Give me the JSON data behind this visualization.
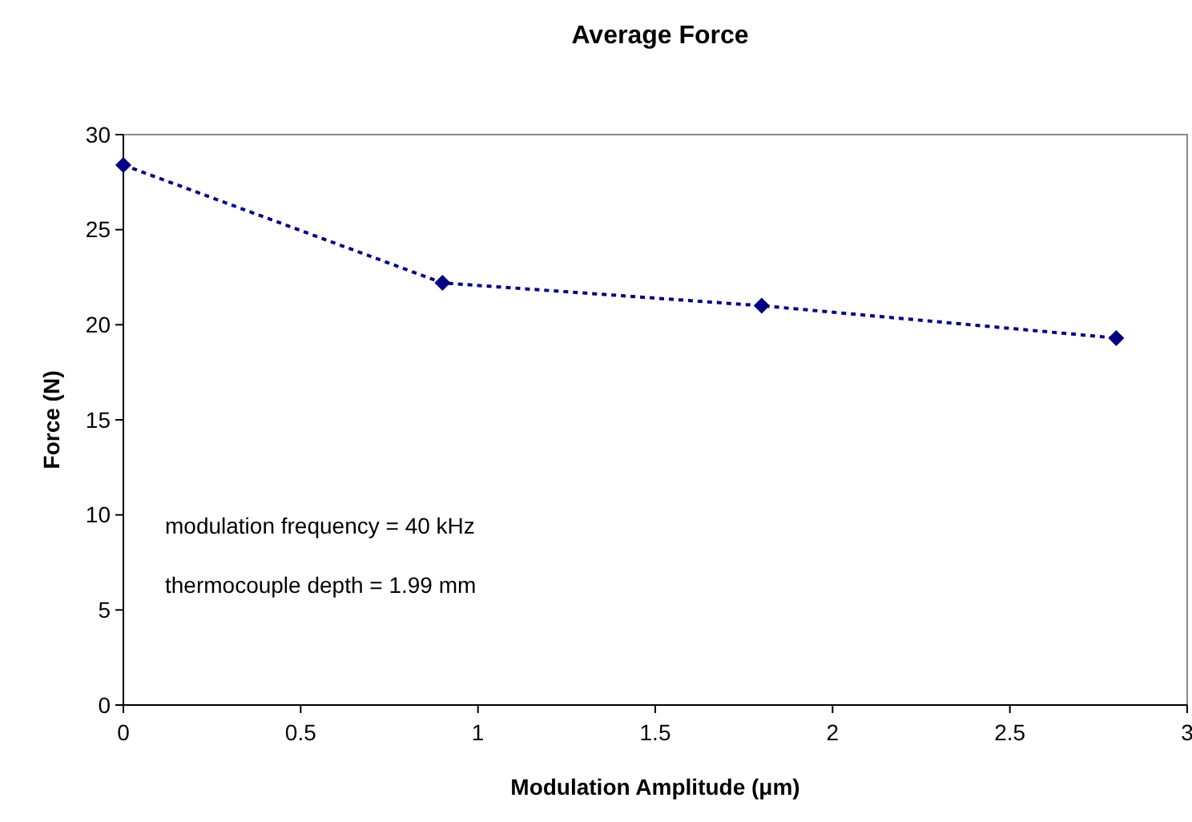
{
  "chart_data": {
    "type": "line",
    "title": "Average Force",
    "xlabel": "Modulation Amplitude (μm)",
    "ylabel": "Force (N)",
    "x": [
      0,
      0.9,
      1.8,
      2.8
    ],
    "series": [
      {
        "color": "#000080",
        "values": [
          28.4,
          22.2,
          21.0,
          19.3
        ]
      }
    ],
    "xlim": [
      0,
      3
    ],
    "xticks": [
      0,
      0.5,
      1,
      1.5,
      2,
      2.5,
      3
    ],
    "ylim": [
      0,
      30
    ],
    "yticks": [
      0,
      5,
      10,
      15,
      20,
      25,
      30
    ],
    "marker": "diamond",
    "line_style": "dotted",
    "grid": false,
    "annotations": [
      "modulation frequency = 40 kHz",
      "thermocouple depth = 1.99 mm"
    ]
  }
}
